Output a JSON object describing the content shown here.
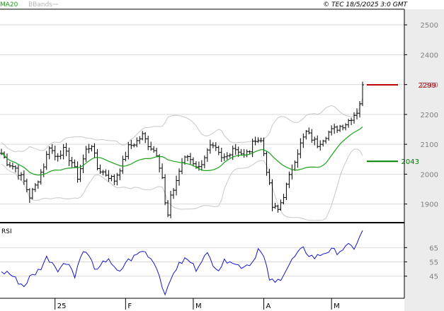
{
  "header": {
    "ma_legend": "MA20",
    "bbands_legend": "BBands",
    "copyright": "© TEC 18/5/2025 3:0 GMT"
  },
  "colors": {
    "price": "#000000",
    "ma20": "#1aa31a",
    "bbands": "#c8c8c8",
    "rsi": "#1414c8",
    "last_price": "#c00000",
    "ma_marker": "#008000",
    "grid": "#d9d9d9",
    "scale_bg": "#ececec"
  },
  "chart_data": [
    {
      "type": "line",
      "panel": "price",
      "y_ticks": [
        1900,
        2000,
        2100,
        2200,
        2300,
        2400,
        2500
      ],
      "y_tick_labels": [
        "1900",
        "2000",
        "2100",
        "2200",
        "2300",
        "2400",
        "2500"
      ],
      "ylim": [
        1840,
        2550
      ],
      "x_ticks": [
        {
          "index": 19,
          "label": "25"
        },
        {
          "index": 44,
          "label": "F"
        },
        {
          "index": 68,
          "label": "M"
        },
        {
          "index": 93,
          "label": "A"
        },
        {
          "index": 117,
          "label": "M"
        }
      ],
      "n_sessions": 129,
      "markers": [
        {
          "label": "2299",
          "value": 2299,
          "color_key": "last_price"
        },
        {
          "label": "2043",
          "value": 2043,
          "color_key": "ma_marker"
        }
      ],
      "anchors": [
        [
          0,
          2070
        ],
        [
          2,
          2040
        ],
        [
          5,
          2020
        ],
        [
          8,
          1975
        ],
        [
          10,
          1925
        ],
        [
          12,
          1960
        ],
        [
          15,
          2030
        ],
        [
          17,
          2095
        ],
        [
          19,
          2060
        ],
        [
          22,
          2080
        ],
        [
          25,
          2040
        ],
        [
          27,
          1990
        ],
        [
          30,
          2080
        ],
        [
          32,
          2100
        ],
        [
          34,
          2020
        ],
        [
          37,
          2000
        ],
        [
          40,
          1980
        ],
        [
          43,
          2040
        ],
        [
          45,
          2090
        ],
        [
          48,
          2110
        ],
        [
          50,
          2130
        ],
        [
          52,
          2100
        ],
        [
          55,
          2070
        ],
        [
          57,
          1990
        ],
        [
          58,
          1900
        ],
        [
          59,
          1860
        ],
        [
          60,
          1920
        ],
        [
          62,
          1980
        ],
        [
          64,
          2040
        ],
        [
          66,
          2060
        ],
        [
          68,
          2040
        ],
        [
          70,
          2020
        ],
        [
          72,
          2060
        ],
        [
          74,
          2090
        ],
        [
          76,
          2080
        ],
        [
          78,
          2050
        ],
        [
          80,
          2060
        ],
        [
          82,
          2090
        ],
        [
          84,
          2080
        ],
        [
          86,
          2060
        ],
        [
          88,
          2080
        ],
        [
          90,
          2120
        ],
        [
          92,
          2110
        ],
        [
          93,
          2070
        ],
        [
          95,
          1960
        ],
        [
          96,
          1890
        ],
        [
          98,
          1880
        ],
        [
          100,
          1930
        ],
        [
          102,
          1990
        ],
        [
          104,
          2050
        ],
        [
          106,
          2100
        ],
        [
          108,
          2140
        ],
        [
          110,
          2120
        ],
        [
          112,
          2100
        ],
        [
          114,
          2120
        ],
        [
          116,
          2140
        ],
        [
          118,
          2150
        ],
        [
          120,
          2160
        ],
        [
          122,
          2170
        ],
        [
          124,
          2190
        ],
        [
          126,
          2210
        ],
        [
          127,
          2240
        ],
        [
          128,
          2299
        ]
      ],
      "series": [
        {
          "name": "MA20",
          "values": []
        },
        {
          "name": "BBands",
          "values": []
        }
      ]
    },
    {
      "type": "line",
      "panel": "indicator",
      "title": "RSI",
      "y_ticks": [
        45,
        55,
        65
      ],
      "y_tick_labels": [
        "45",
        "55",
        "65"
      ],
      "ylim": [
        30,
        82
      ],
      "anchors": [
        [
          0,
          47
        ],
        [
          2,
          48
        ],
        [
          4,
          45
        ],
        [
          6,
          41
        ],
        [
          8,
          38
        ],
        [
          10,
          44
        ],
        [
          12,
          47
        ],
        [
          14,
          51
        ],
        [
          16,
          58
        ],
        [
          18,
          55
        ],
        [
          20,
          50
        ],
        [
          22,
          53
        ],
        [
          24,
          55
        ],
        [
          26,
          44
        ],
        [
          28,
          60
        ],
        [
          30,
          62
        ],
        [
          32,
          55
        ],
        [
          34,
          48
        ],
        [
          36,
          54
        ],
        [
          38,
          58
        ],
        [
          40,
          50
        ],
        [
          42,
          47
        ],
        [
          44,
          55
        ],
        [
          46,
          57
        ],
        [
          48,
          60
        ],
        [
          50,
          63
        ],
        [
          52,
          60
        ],
        [
          55,
          52
        ],
        [
          57,
          38
        ],
        [
          58,
          34
        ],
        [
          59,
          36
        ],
        [
          61,
          48
        ],
        [
          63,
          53
        ],
        [
          65,
          57
        ],
        [
          67,
          55
        ],
        [
          69,
          50
        ],
        [
          71,
          57
        ],
        [
          73,
          60
        ],
        [
          75,
          54
        ],
        [
          77,
          50
        ],
        [
          79,
          55
        ],
        [
          81,
          57
        ],
        [
          83,
          53
        ],
        [
          85,
          52
        ],
        [
          87,
          53
        ],
        [
          89,
          55
        ],
        [
          91,
          64
        ],
        [
          93,
          58
        ],
        [
          95,
          43
        ],
        [
          97,
          40
        ],
        [
          99,
          44
        ],
        [
          101,
          50
        ],
        [
          103,
          56
        ],
        [
          105,
          61
        ],
        [
          107,
          64
        ],
        [
          109,
          60
        ],
        [
          111,
          58
        ],
        [
          113,
          60
        ],
        [
          115,
          62
        ],
        [
          117,
          63
        ],
        [
          119,
          62
        ],
        [
          121,
          64
        ],
        [
          123,
          66
        ],
        [
          125,
          65
        ],
        [
          127,
          72
        ],
        [
          128,
          77
        ]
      ]
    }
  ]
}
